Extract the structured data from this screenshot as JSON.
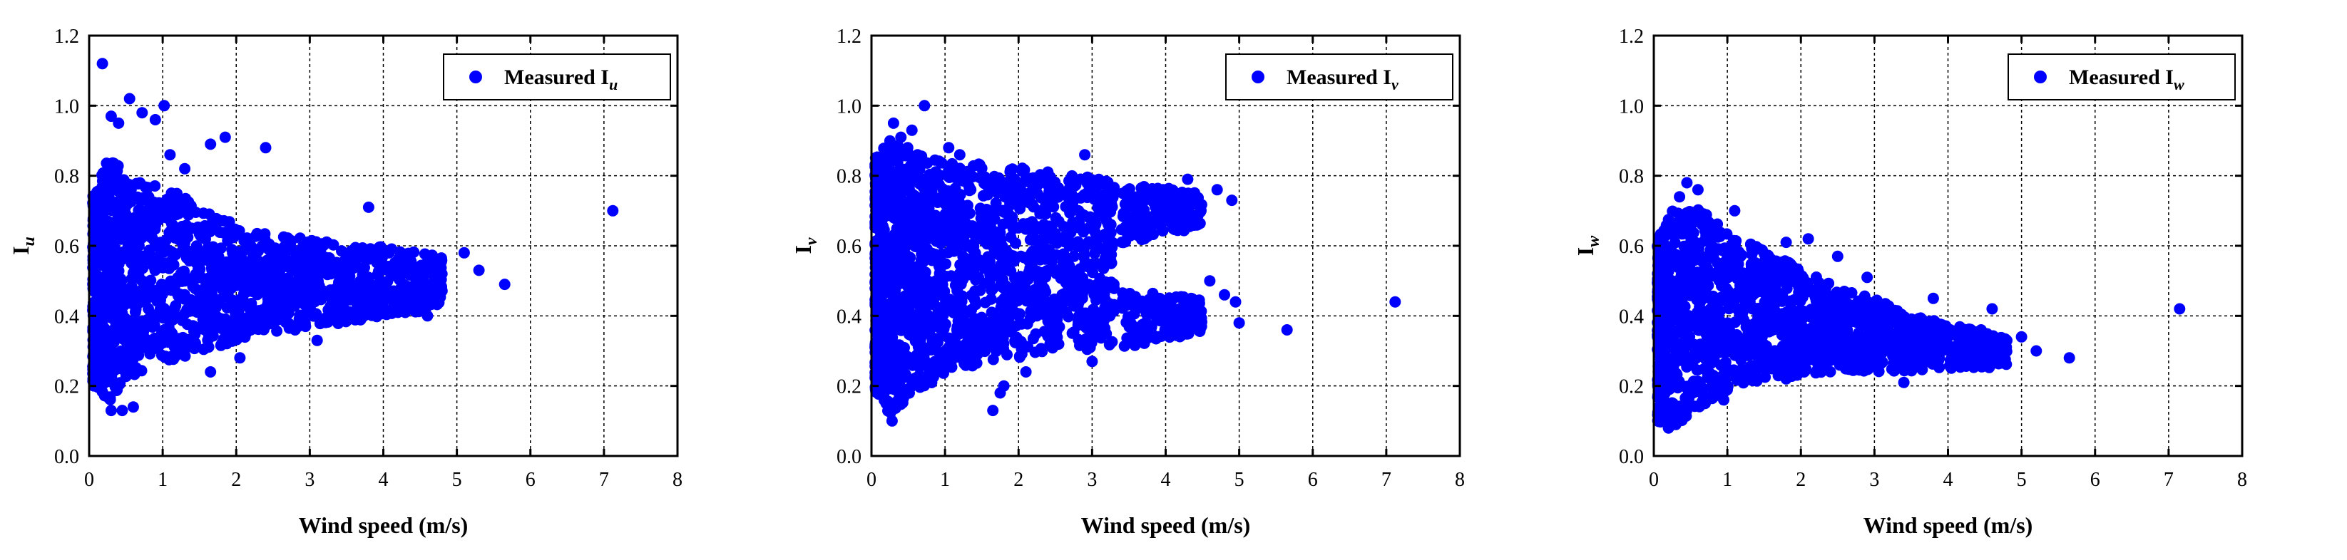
{
  "figure": {
    "marker_color": "#0000ff"
  },
  "chart_data": [
    {
      "type": "scatter",
      "xlabel": "Wind speed (m/s)",
      "ylabel": {
        "base": "I",
        "sub": "u"
      },
      "legend": {
        "text": "Measured I",
        "sub": "u",
        "position": "top-right"
      },
      "xlim": [
        0,
        8
      ],
      "ylim": [
        0,
        1.2
      ],
      "xticks": [
        "0",
        "1",
        "2",
        "3",
        "4",
        "5",
        "6",
        "7",
        "8"
      ],
      "yticks": [
        "0.0",
        "0.2",
        "0.4",
        "0.6",
        "0.8",
        "1.0",
        "1.2"
      ],
      "grid": true,
      "series": [
        {
          "name": "Measured Iu",
          "cloud": [
            [
              0.05,
              0.2,
              0.75
            ],
            [
              0.25,
              0.15,
              0.85
            ],
            [
              0.5,
              0.22,
              0.82
            ],
            [
              0.8,
              0.25,
              0.78
            ],
            [
              1.2,
              0.28,
              0.75
            ],
            [
              1.6,
              0.3,
              0.7
            ],
            [
              2.0,
              0.33,
              0.66
            ],
            [
              2.5,
              0.35,
              0.63
            ],
            [
              3.0,
              0.37,
              0.62
            ],
            [
              3.5,
              0.38,
              0.6
            ],
            [
              4.0,
              0.4,
              0.6
            ],
            [
              4.5,
              0.41,
              0.58
            ],
            [
              4.8,
              0.43,
              0.57
            ]
          ],
          "outliers": [
            [
              0.18,
              1.12
            ],
            [
              0.55,
              1.02
            ],
            [
              0.72,
              0.98
            ],
            [
              1.02,
              1.0
            ],
            [
              0.3,
              0.97
            ],
            [
              0.4,
              0.95
            ],
            [
              0.9,
              0.96
            ],
            [
              1.85,
              0.91
            ],
            [
              1.65,
              0.89
            ],
            [
              2.4,
              0.88
            ],
            [
              1.3,
              0.82
            ],
            [
              1.1,
              0.86
            ],
            [
              3.8,
              0.71
            ],
            [
              7.12,
              0.7
            ],
            [
              5.65,
              0.49
            ],
            [
              5.3,
              0.53
            ],
            [
              5.1,
              0.58
            ],
            [
              4.6,
              0.4
            ],
            [
              0.3,
              0.13
            ],
            [
              0.45,
              0.13
            ],
            [
              0.6,
              0.14
            ],
            [
              1.65,
              0.24
            ],
            [
              2.05,
              0.28
            ],
            [
              3.1,
              0.33
            ],
            [
              4.2,
              0.41
            ],
            [
              2.8,
              0.36
            ]
          ]
        }
      ]
    },
    {
      "type": "scatter",
      "xlabel": "Wind speed (m/s)",
      "ylabel": {
        "base": "I",
        "sub": "v"
      },
      "legend": {
        "text": "Measured I",
        "sub": "v",
        "position": "top-right"
      },
      "xlim": [
        0,
        8
      ],
      "ylim": [
        0,
        1.2
      ],
      "xticks": [
        "0",
        "1",
        "2",
        "3",
        "4",
        "5",
        "6",
        "7",
        "8"
      ],
      "yticks": [
        "0.0",
        "0.2",
        "0.4",
        "0.6",
        "0.8",
        "1.0",
        "1.2"
      ],
      "grid": true,
      "series": [
        {
          "name": "Measured Iv",
          "cloud": [
            [
              0.05,
              0.18,
              0.85
            ],
            [
              0.25,
              0.12,
              0.9
            ],
            [
              0.5,
              0.16,
              0.88
            ],
            [
              0.8,
              0.2,
              0.85
            ],
            [
              1.2,
              0.25,
              0.84
            ],
            [
              1.6,
              0.26,
              0.83
            ],
            [
              2.0,
              0.28,
              0.83
            ],
            [
              2.5,
              0.3,
              0.81
            ],
            [
              3.0,
              0.3,
              0.8
            ],
            [
              3.3,
              0.32,
              0.78
            ]
          ],
          "bands": [
            [
              3.4,
              0.6,
              0.78
            ],
            [
              3.8,
              0.62,
              0.77
            ],
            [
              4.2,
              0.64,
              0.76
            ],
            [
              4.5,
              0.66,
              0.75
            ],
            [
              3.4,
              0.3,
              0.48
            ],
            [
              3.8,
              0.32,
              0.47
            ],
            [
              4.2,
              0.34,
              0.46
            ],
            [
              4.5,
              0.35,
              0.45
            ]
          ],
          "outliers": [
            [
              0.72,
              1.0
            ],
            [
              0.3,
              0.95
            ],
            [
              0.55,
              0.93
            ],
            [
              0.4,
              0.91
            ],
            [
              1.05,
              0.88
            ],
            [
              1.2,
              0.86
            ],
            [
              4.9,
              0.73
            ],
            [
              4.7,
              0.76
            ],
            [
              4.3,
              0.79
            ],
            [
              7.12,
              0.44
            ],
            [
              5.65,
              0.36
            ],
            [
              5.0,
              0.38
            ],
            [
              4.95,
              0.44
            ],
            [
              4.8,
              0.46
            ],
            [
              4.6,
              0.5
            ],
            [
              1.65,
              0.13
            ],
            [
              1.75,
              0.18
            ],
            [
              1.8,
              0.2
            ],
            [
              0.28,
              0.1
            ],
            [
              0.2,
              0.15
            ],
            [
              3.0,
              0.27
            ],
            [
              2.1,
              0.24
            ],
            [
              2.9,
              0.86
            ]
          ]
        }
      ]
    },
    {
      "type": "scatter",
      "xlabel": "Wind speed (m/s)",
      "ylabel": {
        "base": "I",
        "sub": "w"
      },
      "legend": {
        "text": "Measured I",
        "sub": "w",
        "position": "top-right"
      },
      "xlim": [
        0,
        8
      ],
      "ylim": [
        0,
        1.2
      ],
      "xticks": [
        "0",
        "1",
        "2",
        "3",
        "4",
        "5",
        "6",
        "7",
        "8"
      ],
      "yticks": [
        "0.0",
        "0.2",
        "0.4",
        "0.6",
        "0.8",
        "1.0",
        "1.2"
      ],
      "grid": true,
      "series": [
        {
          "name": "Measured Iw",
          "cloud": [
            [
              0.05,
              0.1,
              0.62
            ],
            [
              0.25,
              0.08,
              0.7
            ],
            [
              0.5,
              0.12,
              0.72
            ],
            [
              0.8,
              0.16,
              0.68
            ],
            [
              1.2,
              0.2,
              0.62
            ],
            [
              1.6,
              0.22,
              0.58
            ],
            [
              2.0,
              0.23,
              0.54
            ],
            [
              2.5,
              0.24,
              0.48
            ],
            [
              3.0,
              0.24,
              0.45
            ],
            [
              3.5,
              0.24,
              0.4
            ],
            [
              4.0,
              0.25,
              0.38
            ],
            [
              4.5,
              0.25,
              0.35
            ],
            [
              4.8,
              0.26,
              0.34
            ]
          ],
          "outliers": [
            [
              0.45,
              0.78
            ],
            [
              0.6,
              0.76
            ],
            [
              0.35,
              0.74
            ],
            [
              1.1,
              0.7
            ],
            [
              1.8,
              0.61
            ],
            [
              2.1,
              0.62
            ],
            [
              2.9,
              0.51
            ],
            [
              3.8,
              0.45
            ],
            [
              4.6,
              0.42
            ],
            [
              4.45,
              0.36
            ],
            [
              5.0,
              0.34
            ],
            [
              5.65,
              0.28
            ],
            [
              5.2,
              0.3
            ],
            [
              7.15,
              0.42
            ],
            [
              0.2,
              0.08
            ],
            [
              0.3,
              0.09
            ],
            [
              0.95,
              0.16
            ],
            [
              1.8,
              0.22
            ],
            [
              3.4,
              0.21
            ],
            [
              2.5,
              0.57
            ]
          ]
        }
      ]
    }
  ]
}
